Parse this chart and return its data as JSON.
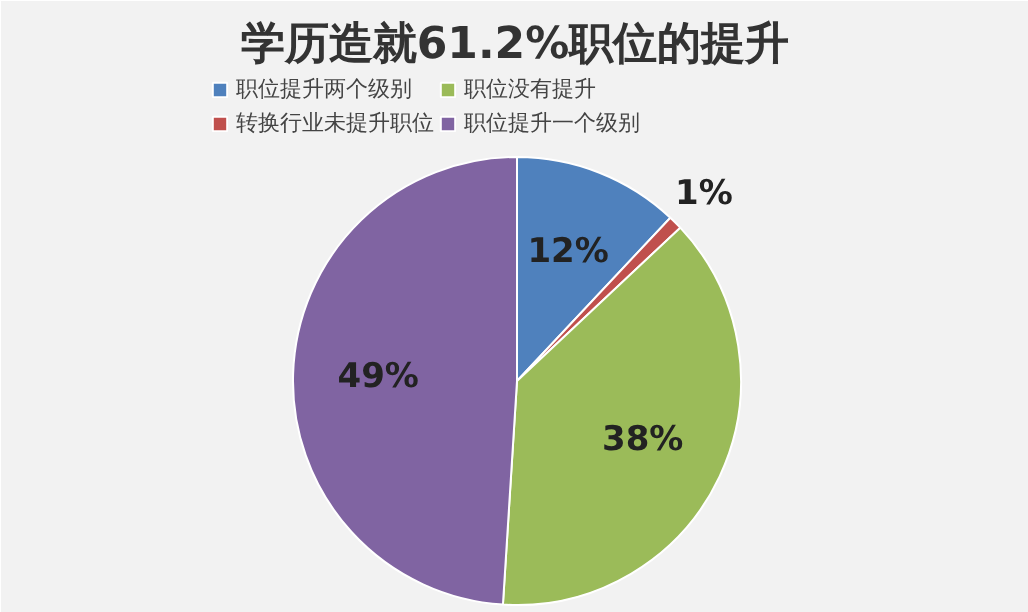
{
  "chart_data": {
    "type": "pie",
    "title": "学历造就61.2%职位的提升",
    "categories": [
      "职位提升两个级别",
      "转换行业未提升职位",
      "职位没有提升",
      "职位提升一个级别"
    ],
    "values": [
      12,
      1,
      38,
      49
    ],
    "colors": [
      "#4f81bd",
      "#c0504d",
      "#9bbb59",
      "#8064a2"
    ],
    "value_labels": [
      "12%",
      "1%",
      "38%",
      "49%"
    ],
    "legend": "top"
  }
}
